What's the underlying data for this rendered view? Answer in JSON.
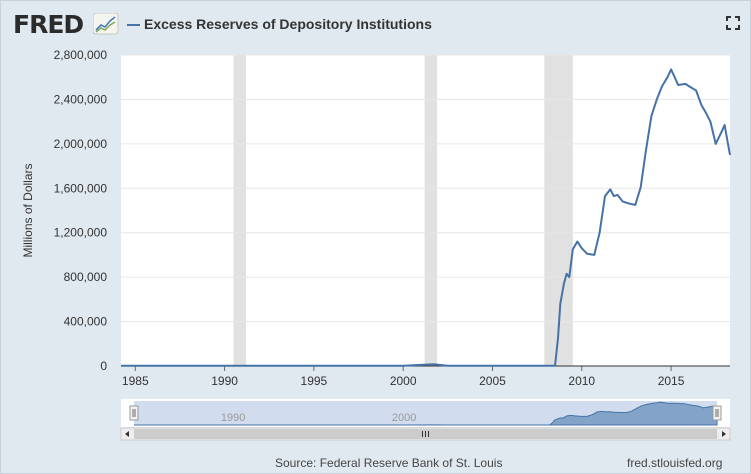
{
  "header": {
    "logo_text": "FRED",
    "title": "Excess Reserves of Depository Institutions",
    "fullscreen_icon": "expand-icon"
  },
  "footer": {
    "source": "Source: Federal Reserve Bank of St. Louis",
    "site": "fred.stlouisfed.org"
  },
  "colors": {
    "line": "#4572a7",
    "recession": "#e1e1e1",
    "navigator_fill": "#c2d2ea",
    "navigator_series": "#4572a7"
  },
  "chart_data": {
    "type": "line",
    "title": "Excess Reserves of Depository Institutions",
    "xlabel": "",
    "ylabel": "Millions of Dollars",
    "xlim": [
      1984.2,
      2018.3
    ],
    "ylim": [
      0,
      2800000
    ],
    "yticks": [
      0,
      400000,
      800000,
      1200000,
      1600000,
      2000000,
      2400000,
      2800000
    ],
    "ytick_labels": [
      "0",
      "400,000",
      "800,000",
      "1,200,000",
      "1,600,000",
      "2,000,000",
      "2,400,000",
      "2,800,000"
    ],
    "xticks": [
      1985,
      1990,
      1995,
      2000,
      2005,
      2010,
      2015
    ],
    "xtick_labels": [
      "1985",
      "1990",
      "1995",
      "2000",
      "2005",
      "2010",
      "2015"
    ],
    "grid": true,
    "recessions": [
      [
        1990.5,
        1991.2
      ],
      [
        2001.2,
        2001.9
      ],
      [
        2007.9,
        2009.5
      ]
    ],
    "series": [
      {
        "name": "Excess Reserves of Depository Institutions",
        "x": [
          1984.2,
          1990,
          1995,
          2000,
          2001.7,
          2002.5,
          2005,
          2007.5,
          2008.5,
          2008.67,
          2008.8,
          2009.0,
          2009.15,
          2009.3,
          2009.5,
          2009.75,
          2010.0,
          2010.3,
          2010.7,
          2011.0,
          2011.3,
          2011.6,
          2011.8,
          2012.0,
          2012.3,
          2012.7,
          2013.0,
          2013.3,
          2013.6,
          2013.9,
          2014.2,
          2014.5,
          2014.8,
          2015.0,
          2015.4,
          2015.8,
          2016.0,
          2016.4,
          2016.7,
          2016.95,
          2017.2,
          2017.5,
          2017.8,
          2018.0,
          2018.3
        ],
        "y": [
          2000,
          2000,
          2000,
          2000,
          15000,
          2000,
          2000,
          2000,
          2000,
          250000,
          560000,
          740000,
          830000,
          800000,
          1050000,
          1120000,
          1060000,
          1010000,
          1000000,
          1200000,
          1530000,
          1590000,
          1530000,
          1540000,
          1480000,
          1460000,
          1450000,
          1610000,
          1950000,
          2250000,
          2400000,
          2520000,
          2600000,
          2670000,
          2530000,
          2540000,
          2520000,
          2480000,
          2350000,
          2280000,
          2200000,
          2000000,
          2100000,
          2170000,
          1900000
        ]
      }
    ],
    "navigator_labels": [
      "1990",
      "2000"
    ]
  }
}
